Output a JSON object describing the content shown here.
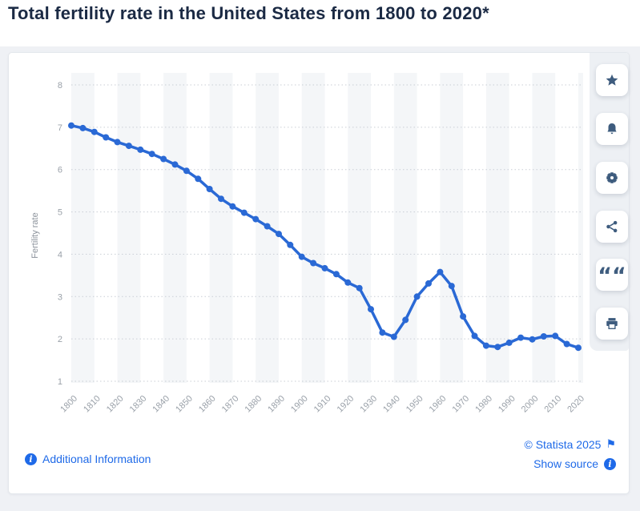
{
  "title": "Total fertility rate in the United States from 1800 to 2020*",
  "chart_data": {
    "type": "line",
    "title": "Total fertility rate in the United States from 1800 to 2020*",
    "xlabel": "",
    "ylabel": "Fertility rate",
    "ylim": [
      1,
      8
    ],
    "y_ticks": [
      1,
      2,
      3,
      4,
      5,
      6,
      7,
      8
    ],
    "x_ticks": [
      1800,
      1810,
      1820,
      1830,
      1840,
      1850,
      1860,
      1870,
      1880,
      1890,
      1900,
      1910,
      1920,
      1930,
      1940,
      1950,
      1960,
      1970,
      1980,
      1990,
      2000,
      2010,
      2020
    ],
    "x": [
      1800,
      1805,
      1810,
      1815,
      1820,
      1825,
      1830,
      1835,
      1840,
      1845,
      1850,
      1855,
      1860,
      1865,
      1870,
      1875,
      1880,
      1885,
      1890,
      1895,
      1900,
      1905,
      1910,
      1915,
      1920,
      1925,
      1930,
      1935,
      1940,
      1945,
      1950,
      1955,
      1960,
      1965,
      1970,
      1975,
      1980,
      1985,
      1990,
      1995,
      2000,
      2005,
      2010,
      2015,
      2020
    ],
    "values": [
      7.04,
      6.98,
      6.89,
      6.76,
      6.65,
      6.56,
      6.47,
      6.37,
      6.25,
      6.12,
      5.97,
      5.78,
      5.54,
      5.31,
      5.13,
      4.98,
      4.83,
      4.66,
      4.48,
      4.22,
      3.94,
      3.79,
      3.67,
      3.53,
      3.33,
      3.2,
      2.7,
      2.15,
      2.05,
      2.45,
      3.0,
      3.31,
      3.58,
      3.25,
      2.53,
      2.07,
      1.84,
      1.81,
      1.91,
      2.03,
      1.99,
      2.06,
      2.07,
      1.88,
      1.79
    ],
    "grid": "dotted-horizontal",
    "plot_bands": "alternating decade stripes starting grey at 1800",
    "legend_position": "none",
    "x_label_rotation": -45
  },
  "colors": {
    "series": "#2a69d5",
    "band": "#f4f6f8",
    "gridline": "#c9ced5",
    "axis_label": "#9aa1a9",
    "axis_title": "#8b929b",
    "link_blue": "#1f6ae8",
    "icon_navy": "#3e5c7e",
    "title_navy": "#1b2a44"
  },
  "sidebar": {
    "buttons": [
      {
        "name": "favorite",
        "icon": "star-icon"
      },
      {
        "name": "alert",
        "icon": "bell-icon"
      },
      {
        "name": "settings",
        "icon": "gear-icon"
      },
      {
        "name": "share",
        "icon": "share-icon"
      },
      {
        "name": "cite",
        "icon": "quote-icon"
      },
      {
        "name": "print",
        "icon": "printer-icon"
      }
    ]
  },
  "footer": {
    "additional_info_label": "Additional Information",
    "copyright": "© Statista 2025",
    "show_source_label": "Show source"
  },
  "icons": {
    "info_glyph": "i",
    "flag_glyph": "⚑",
    "quote_glyph": "““"
  }
}
